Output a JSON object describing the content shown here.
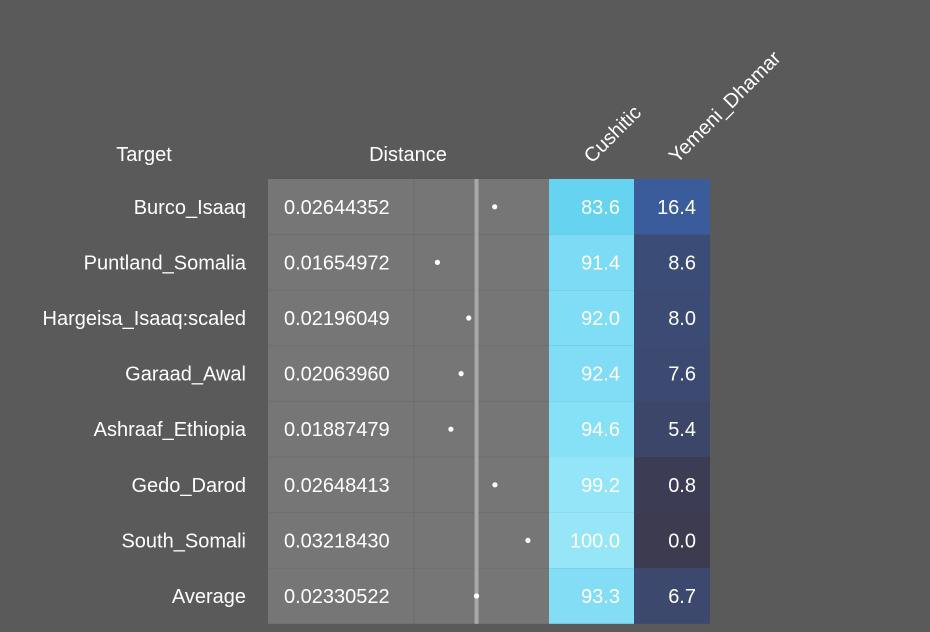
{
  "chart_data": {
    "type": "table",
    "columns": {
      "target": "Target",
      "distance": "Distance",
      "cushitic": "Cushitic",
      "yemeni": "Yemeni_Dhamar"
    },
    "rows": [
      {
        "target": "Burco_Isaaq",
        "distance": "0.02644352",
        "cushitic": "83.6",
        "yemeni": "16.4"
      },
      {
        "target": "Puntland_Somalia",
        "distance": "0.01654972",
        "cushitic": "91.4",
        "yemeni": "8.6"
      },
      {
        "target": "Hargeisa_Isaaq:scaled",
        "distance": "0.02196049",
        "cushitic": "92.0",
        "yemeni": "8.0"
      },
      {
        "target": "Garaad_Awal",
        "distance": "0.02063960",
        "cushitic": "92.4",
        "yemeni": "7.6"
      },
      {
        "target": "Ashraaf_Ethiopia",
        "distance": "0.01887479",
        "cushitic": "94.6",
        "yemeni": "5.4"
      },
      {
        "target": "Gedo_Darod",
        "distance": "0.02648413",
        "cushitic": "99.2",
        "yemeni": "0.8"
      },
      {
        "target": "South_Somali",
        "distance": "0.03218430",
        "cushitic": "100.0",
        "yemeni": "0.0"
      },
      {
        "target": "Average",
        "distance": "0.02330522",
        "cushitic": "93.3",
        "yemeni": "6.7"
      }
    ],
    "average_distance": 0.02330522,
    "distance_range": [
      0.0125,
      0.036
    ],
    "colors": {
      "background": "#5a5a5a",
      "distance_cell": "#767676",
      "average_line": "#a8a8a8",
      "cushitic_low": "#5ccff0",
      "cushitic_high": "#96e6f8",
      "yemeni_low": "#3c3b50",
      "yemeni_high": "#3b5c9a"
    }
  }
}
